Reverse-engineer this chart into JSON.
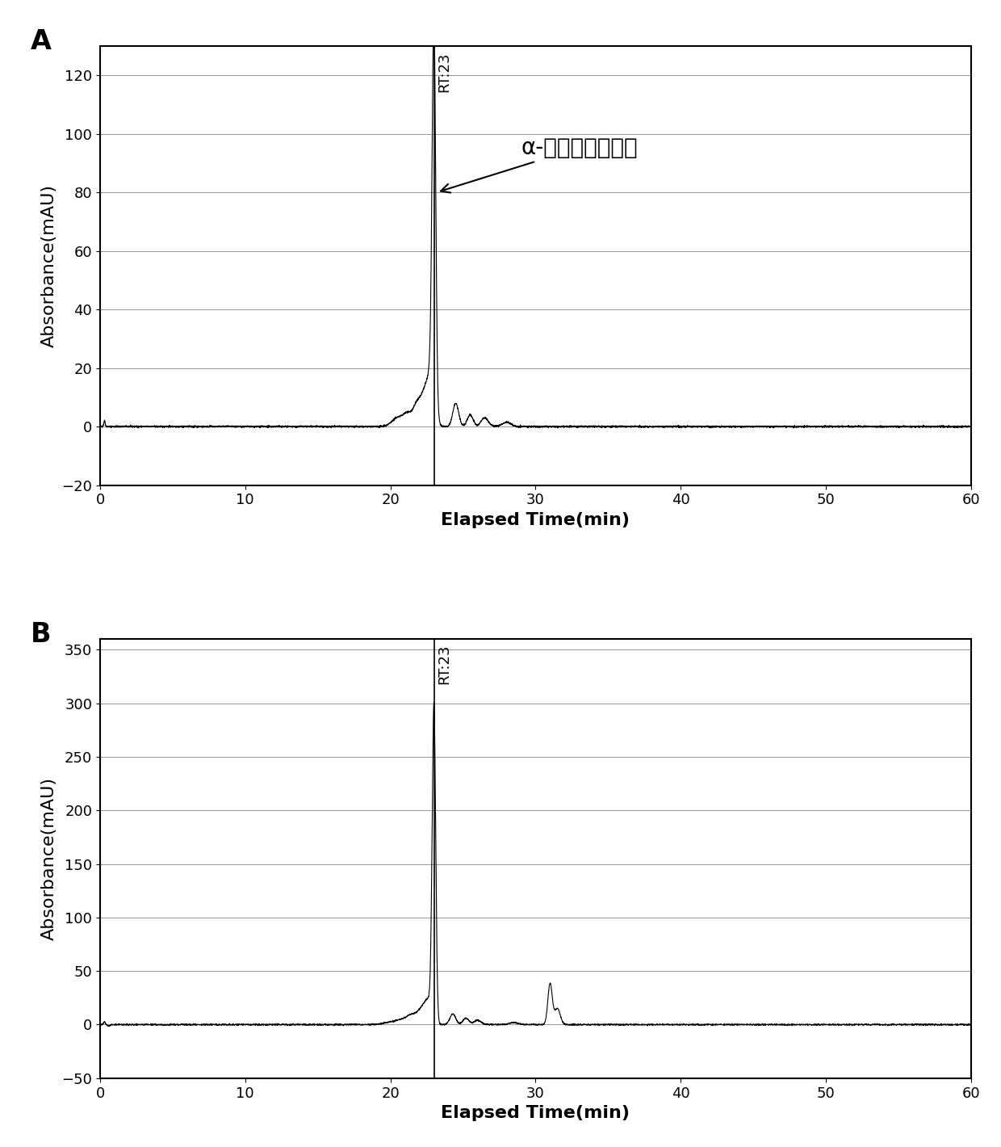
{
  "panel_A": {
    "label": "A",
    "ylim": [
      -20,
      130
    ],
    "yticks": [
      -20,
      0,
      20,
      40,
      60,
      80,
      100,
      120
    ],
    "xlim": [
      0,
      60
    ],
    "xticks": [
      0,
      10,
      20,
      30,
      40,
      50,
      60
    ],
    "ylabel": "Absorbance(mAU)",
    "xlabel": "Elapsed Time(min)",
    "peak_rt": 23,
    "peak_height": 125,
    "annotation_text": "α-胡萝卜素标准品",
    "rt_label": "RT:23"
  },
  "panel_B": {
    "label": "B",
    "ylim": [
      -50,
      360
    ],
    "yticks": [
      -50,
      0,
      50,
      100,
      150,
      200,
      250,
      300,
      350
    ],
    "xlim": [
      0,
      60
    ],
    "xticks": [
      0,
      10,
      20,
      30,
      40,
      50,
      60
    ],
    "ylabel": "Absorbance(mAU)",
    "xlabel": "Elapsed Time(min)",
    "peak_rt": 23,
    "peak_height": 295,
    "rt_label": "RT:23"
  },
  "line_color": "#000000",
  "background_color": "#ffffff",
  "grid_color": "#888888",
  "label_fontsize": 16,
  "tick_fontsize": 13,
  "annotation_fontsize": 20,
  "rt_fontsize": 13
}
